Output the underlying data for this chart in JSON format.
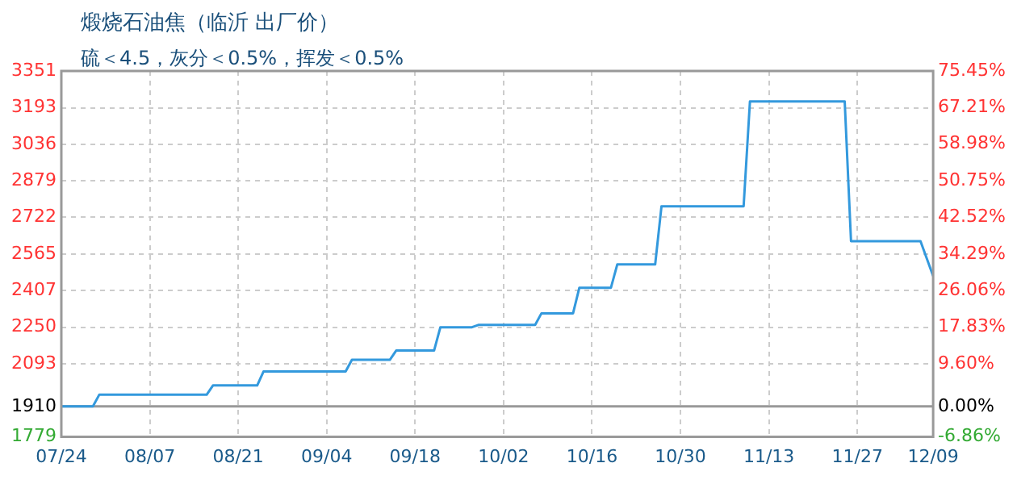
{
  "chart_data": {
    "type": "line",
    "title": "煅烧石油焦（临沂 出厂价）",
    "subtitle": "硫＜4.5，灰分＜0.5%，挥发＜0.5%",
    "x": [
      "--07-24",
      "--07-29",
      "--07-30",
      "--08-16",
      "--08-17",
      "--08-24",
      "--08-25",
      "--09-07",
      "--09-08",
      "--09-14",
      "--09-15",
      "--09-21",
      "--09-22",
      "--09-27",
      "--09-28",
      "--10-07",
      "--10-08",
      "--10-13",
      "--10-14",
      "--10-19",
      "--10-20",
      "--10-26",
      "--10-27",
      "--11-09",
      "--11-10",
      "--11-25",
      "--11-26",
      "--12-07",
      "--12-09"
    ],
    "values": [
      1910,
      1910,
      1960,
      1960,
      2000,
      2000,
      2060,
      2060,
      2110,
      2110,
      2150,
      2150,
      2250,
      2250,
      2260,
      2260,
      2310,
      2310,
      2420,
      2420,
      2520,
      2520,
      2770,
      2770,
      3220,
      3220,
      2620,
      2620,
      2470
    ],
    "color": "#3399dd",
    "xlim": [
      "--07-24",
      "--12-09"
    ],
    "xticks": [
      {
        "value": "--07-24",
        "label": "07/24"
      },
      {
        "value": "--08-07",
        "label": "08/07"
      },
      {
        "value": "--08-21",
        "label": "08/21"
      },
      {
        "value": "--09-04",
        "label": "09/04"
      },
      {
        "value": "--09-18",
        "label": "09/18"
      },
      {
        "value": "--10-02",
        "label": "10/02"
      },
      {
        "value": "--10-16",
        "label": "10/16"
      },
      {
        "value": "--10-30",
        "label": "10/30"
      },
      {
        "value": "--11-13",
        "label": "11/13"
      },
      {
        "value": "--11-27",
        "label": "11/27"
      },
      {
        "value": "--12-09",
        "label": "12/09"
      }
    ],
    "ylim": [
      1779,
      3351
    ],
    "yticks": [
      1779,
      1910,
      2093,
      2250,
      2407,
      2565,
      2722,
      2879,
      3036,
      3193,
      3351
    ],
    "y2lim": [
      -6.86,
      75.45
    ],
    "y2ticks": [
      {
        "value": -6.86,
        "label": "-6.86%"
      },
      {
        "value": 0,
        "label": "0.00%"
      },
      {
        "value": 9.6,
        "label": "9.60%"
      },
      {
        "value": 17.83,
        "label": "17.83%"
      },
      {
        "value": 26.06,
        "label": "26.06%"
      },
      {
        "value": 34.29,
        "label": "34.29%"
      },
      {
        "value": 42.52,
        "label": "42.52%"
      },
      {
        "value": 50.75,
        "label": "50.75%"
      },
      {
        "value": 58.98,
        "label": "58.98%"
      },
      {
        "value": 67.21,
        "label": "67.21%"
      },
      {
        "value": 75.45,
        "label": "75.45%"
      }
    ],
    "ref_lines": [
      {
        "axis": "y",
        "value": 1910,
        "color": "#999999"
      }
    ],
    "grid": true,
    "legend": false,
    "marker": "none",
    "line_style": "solid"
  }
}
